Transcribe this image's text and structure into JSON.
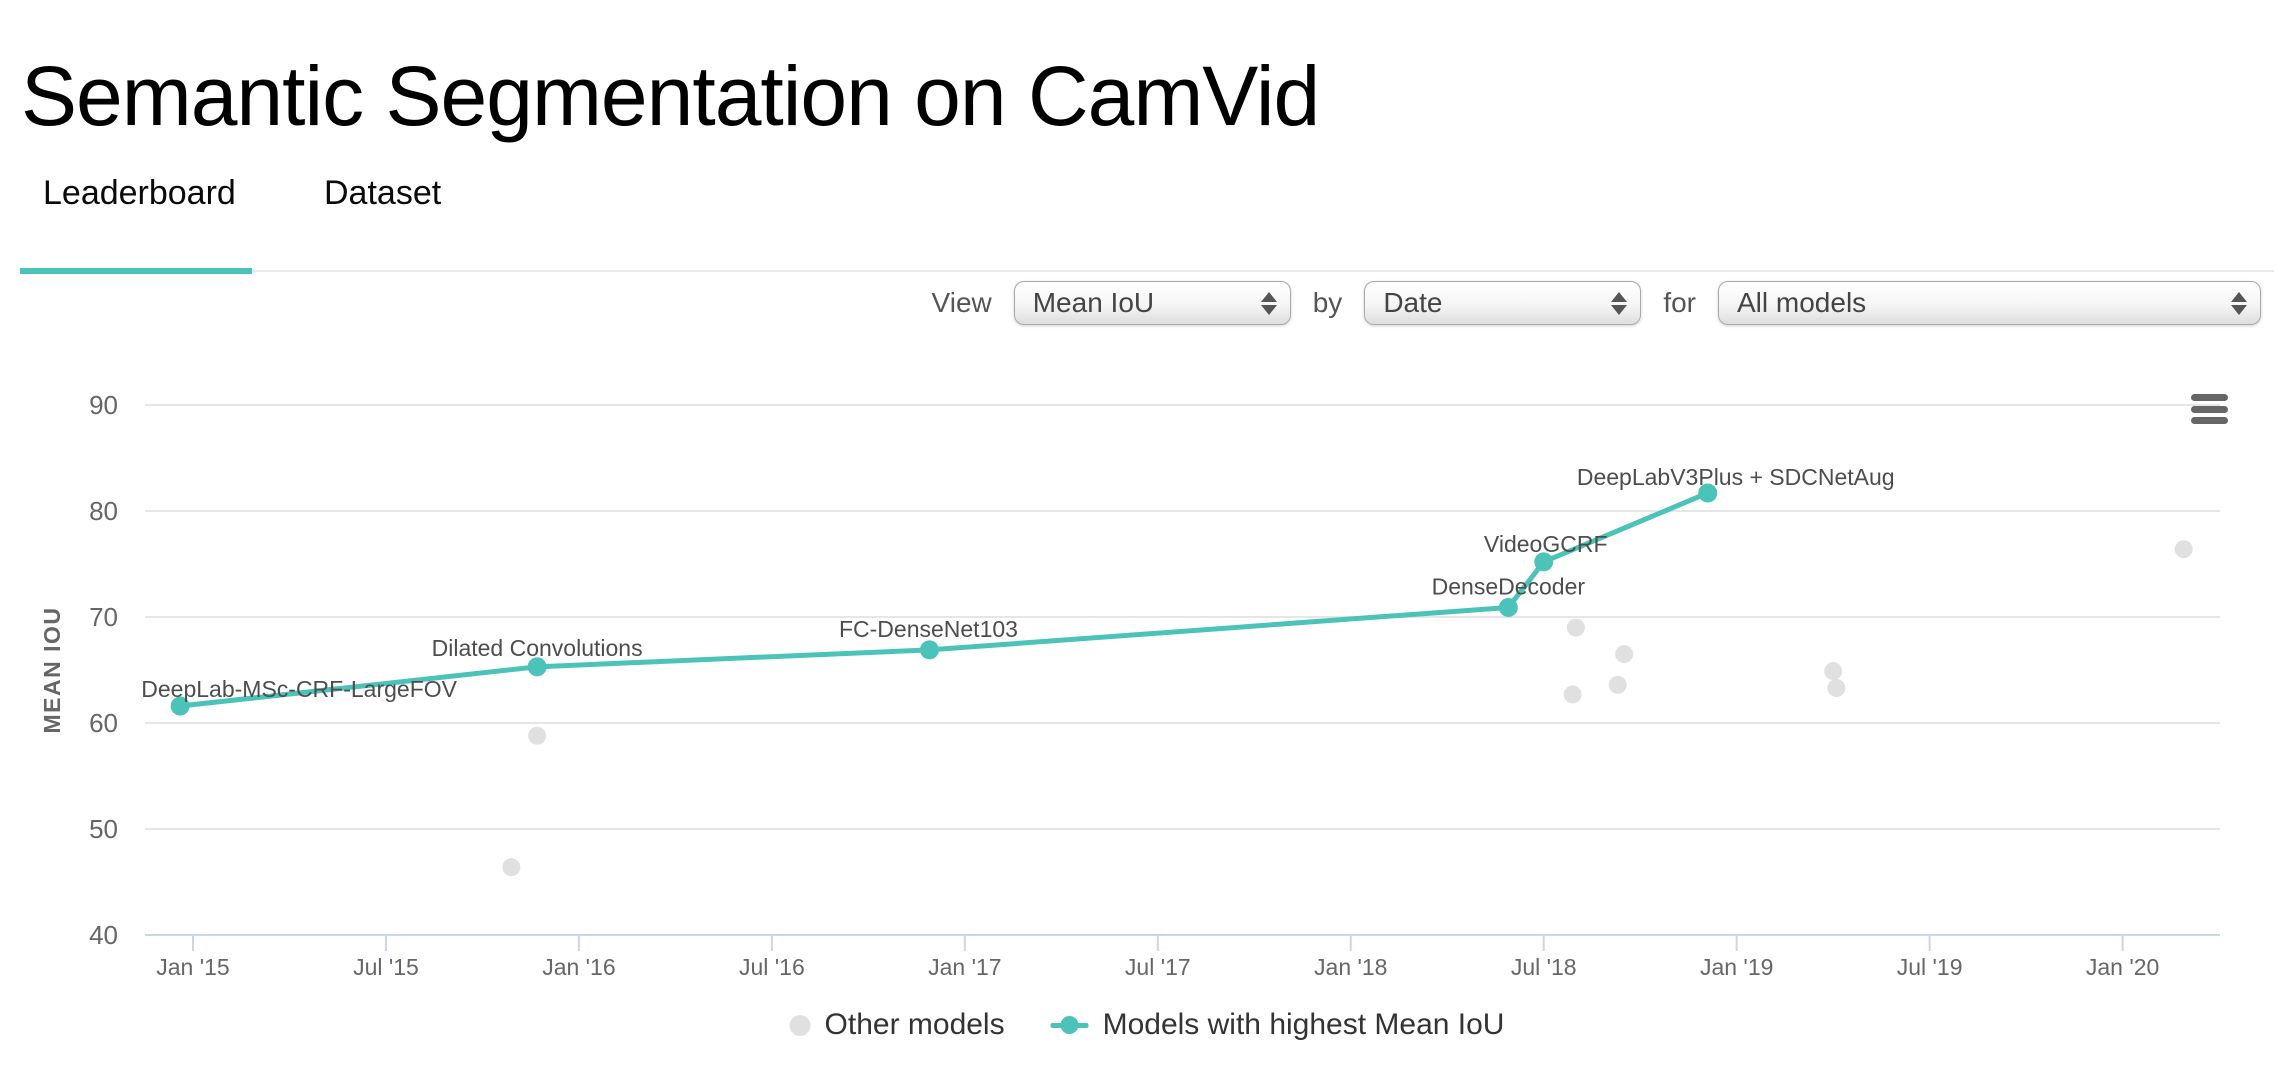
{
  "title": "Semantic Segmentation on CamVid",
  "tabs": [
    {
      "label": "Leaderboard",
      "active": true
    },
    {
      "label": "Dataset",
      "active": false
    }
  ],
  "controls": {
    "view_label": "View",
    "view_value": "Mean IoU",
    "by_label": "by",
    "by_value": "Date",
    "for_label": "for",
    "for_value": "All models"
  },
  "colors": {
    "accent_teal": "#4cc3b9",
    "other_gray": "#e0e0e0",
    "grid": "#e6e6e6",
    "axis": "#ccd6eb",
    "axis_text": "#666666",
    "annotation_text": "#4d4d4d",
    "legend_text": "#333333"
  },
  "chart_data": {
    "type": "scatter",
    "title": "",
    "xlabel": "",
    "ylabel": "MEAN IOU",
    "ylim": [
      40,
      90
    ],
    "yticks": [
      40,
      50,
      60,
      70,
      80,
      90
    ],
    "xticks": [
      {
        "label": "Jan '15",
        "m": 0
      },
      {
        "label": "Jul '15",
        "m": 6
      },
      {
        "label": "Jan '16",
        "m": 12
      },
      {
        "label": "Jul '16",
        "m": 18
      },
      {
        "label": "Jan '17",
        "m": 24
      },
      {
        "label": "Jul '17",
        "m": 30
      },
      {
        "label": "Jan '18",
        "m": 36
      },
      {
        "label": "Jul '18",
        "m": 42
      },
      {
        "label": "Jan '19",
        "m": 48
      },
      {
        "label": "Jul '19",
        "m": 54
      },
      {
        "label": "Jan '20",
        "m": 60
      }
    ],
    "grid": "horizontal",
    "legend_position": "bottom",
    "series": [
      {
        "name": "Models with highest Mean IoU",
        "type": "line+scatter",
        "color": "#4cc3b9",
        "points": [
          {
            "label": "DeepLab-MSc-CRF-LargeFOV",
            "date": "Dec '14",
            "m": -0.4,
            "value": 61.6,
            "label_dx": 119,
            "label_dy": -9
          },
          {
            "label": "Dilated Convolutions",
            "date": "Nov '15",
            "m": 10.7,
            "value": 65.3,
            "label_dx": 0,
            "label_dy": -11
          },
          {
            "label": "FC-DenseNet103",
            "date": "Nov '16",
            "m": 22.9,
            "value": 66.9,
            "label_dx": -1,
            "label_dy": -13
          },
          {
            "label": "DenseDecoder",
            "date": "May '18",
            "m": 40.9,
            "value": 70.9,
            "label_dx": 0,
            "label_dy": -13
          },
          {
            "label": "VideoGCRF",
            "date": "Jun '18",
            "m": 42.0,
            "value": 75.2,
            "label_dx": 2,
            "label_dy": -10
          },
          {
            "label": "DeepLabV3Plus + SDCNetAug",
            "date": "Nov '18",
            "m": 47.1,
            "value": 81.7,
            "label_dx": 28,
            "label_dy": -8
          }
        ]
      },
      {
        "name": "Other models",
        "type": "scatter",
        "color": "#e0e0e0",
        "points": [
          {
            "date": "Oct '15",
            "m": 9.9,
            "value": 46.4
          },
          {
            "date": "Nov '15",
            "m": 10.7,
            "value": 58.8
          },
          {
            "date": "Aug '18",
            "m": 42.9,
            "value": 62.7
          },
          {
            "date": "Aug '18",
            "m": 43.0,
            "value": 69.0
          },
          {
            "date": "Sep '18",
            "m": 44.3,
            "value": 63.6
          },
          {
            "date": "Sep '18",
            "m": 44.5,
            "value": 66.5
          },
          {
            "date": "Mar '19",
            "m": 51.0,
            "value": 64.9
          },
          {
            "date": "Mar '19",
            "m": 51.1,
            "value": 63.3
          },
          {
            "date": "Feb '20",
            "m": 61.9,
            "value": 76.4
          }
        ]
      }
    ],
    "legend": [
      {
        "label": "Other models",
        "color": "#e0e0e0",
        "marker": "dot"
      },
      {
        "label": "Models with highest Mean IoU",
        "color": "#4cc3b9",
        "marker": "line-dot"
      }
    ]
  }
}
